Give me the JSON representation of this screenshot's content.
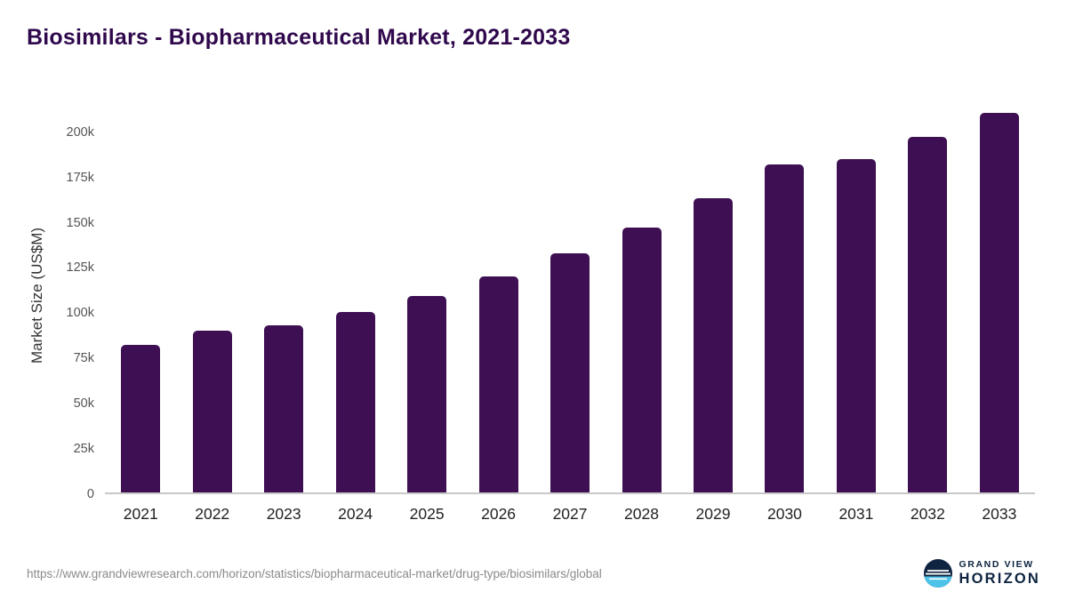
{
  "header": {
    "title": "Biosimilars - Biopharmaceutical Market, 2021-2033"
  },
  "chart_data": {
    "type": "bar",
    "title": "Biosimilars - Biopharmaceutical Market, 2021-2033",
    "categories": [
      "2021",
      "2022",
      "2023",
      "2024",
      "2025",
      "2026",
      "2027",
      "2028",
      "2029",
      "2030",
      "2031",
      "2032",
      "2033"
    ],
    "values": [
      82000,
      90000,
      92500,
      100000,
      109000,
      120000,
      132500,
      147000,
      163500,
      182000,
      185000,
      197500,
      210500
    ],
    "xlabel": "",
    "ylabel": "Market Size (US$M)",
    "ylim": [
      0,
      220000
    ],
    "yticks": [
      {
        "value": 0,
        "label": "0"
      },
      {
        "value": 25000,
        "label": "25k"
      },
      {
        "value": 50000,
        "label": "50k"
      },
      {
        "value": 75000,
        "label": "75k"
      },
      {
        "value": 100000,
        "label": "100k"
      },
      {
        "value": 125000,
        "label": "125k"
      },
      {
        "value": 150000,
        "label": "150k"
      },
      {
        "value": 175000,
        "label": "175k"
      },
      {
        "value": 200000,
        "label": "200k"
      }
    ],
    "bar_color": "#3e1053",
    "grid": false,
    "legend": "none"
  },
  "footer": {
    "source_url": "https://www.grandviewresearch.com/horizon/statistics/biopharmaceutical-market/drug-type/biosimilars/global",
    "logo": {
      "line1": "GRAND VIEW",
      "line2": "HORIZON",
      "navy": "#0e2440",
      "light_blue": "#4ec3ea"
    }
  }
}
